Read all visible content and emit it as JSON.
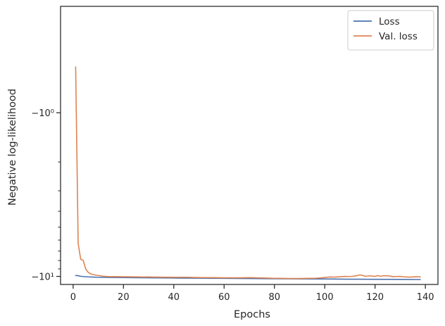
{
  "chart_data": {
    "type": "line",
    "title": "",
    "xlabel": "Epochs",
    "ylabel": "Negative log-likelihood",
    "xlim": [
      -5,
      145
    ],
    "ylim": [
      -11.2,
      -0.35
    ],
    "yscale": "symlog-negative",
    "grid": false,
    "legend_position": "top-right",
    "x_ticks": [
      0,
      20,
      40,
      60,
      80,
      100,
      120,
      140
    ],
    "x_tick_labels": [
      "0",
      "20",
      "40",
      "60",
      "80",
      "100",
      "120",
      "140"
    ],
    "y_ticks": [
      -1,
      -10
    ],
    "y_tick_labels": [
      "−10⁰",
      "−10¹"
    ],
    "colors": {
      "loss": "#4c72b0",
      "val_loss": "#dd8452",
      "axes": "#262626"
    },
    "series": [
      {
        "name": "Loss",
        "color": "#4c72b0",
        "x": [
          1,
          2,
          3,
          4,
          6,
          8,
          10,
          15,
          20,
          30,
          40,
          50,
          60,
          70,
          80,
          90,
          100,
          110,
          120,
          130,
          138
        ],
        "y": [
          -9.88,
          -9.9,
          -9.98,
          -10.02,
          -10.07,
          -10.1,
          -10.12,
          -10.15,
          -10.17,
          -10.2,
          -10.23,
          -10.25,
          -10.28,
          -10.3,
          -10.33,
          -10.35,
          -10.37,
          -10.4,
          -10.42,
          -10.43,
          -10.45
        ]
      },
      {
        "name": "Val. loss",
        "color": "#dd8452",
        "x": [
          1,
          2,
          3,
          4,
          5,
          6,
          7,
          8,
          9,
          10,
          11,
          12,
          13,
          14,
          15,
          16,
          18,
          20,
          22,
          24,
          26,
          28,
          30,
          32,
          34,
          36,
          38,
          40,
          42,
          44,
          46,
          48,
          50,
          52,
          54,
          56,
          58,
          60,
          62,
          64,
          66,
          68,
          70,
          72,
          74,
          76,
          78,
          80,
          82,
          84,
          86,
          88,
          90,
          92,
          94,
          96,
          98,
          100,
          102,
          104,
          106,
          108,
          110,
          112,
          114,
          115,
          116,
          118,
          120,
          121,
          122,
          124,
          126,
          127,
          128,
          130,
          132,
          134,
          136,
          138
        ],
        "y": [
          -0.72,
          -6.3,
          -7.85,
          -7.98,
          -9.0,
          -9.45,
          -9.65,
          -9.75,
          -9.82,
          -9.87,
          -9.92,
          -9.97,
          -10.0,
          -10.02,
          -10.04,
          -10.03,
          -10.04,
          -10.05,
          -10.05,
          -10.06,
          -10.07,
          -10.09,
          -10.08,
          -10.1,
          -10.1,
          -10.11,
          -10.11,
          -10.12,
          -10.12,
          -10.12,
          -10.13,
          -10.15,
          -10.16,
          -10.17,
          -10.17,
          -10.18,
          -10.19,
          -10.2,
          -10.2,
          -10.2,
          -10.2,
          -10.19,
          -10.17,
          -10.19,
          -10.21,
          -10.23,
          -10.25,
          -10.27,
          -10.28,
          -10.29,
          -10.3,
          -10.3,
          -10.3,
          -10.29,
          -10.28,
          -10.27,
          -10.22,
          -10.15,
          -10.08,
          -10.1,
          -10.05,
          -10.0,
          -10.02,
          -9.95,
          -9.8,
          -9.85,
          -9.98,
          -9.92,
          -10.0,
          -9.88,
          -9.97,
          -9.9,
          -9.95,
          -10.05,
          -10.02,
          -10.0,
          -10.08,
          -10.1,
          -10.05,
          -10.08
        ]
      }
    ]
  }
}
